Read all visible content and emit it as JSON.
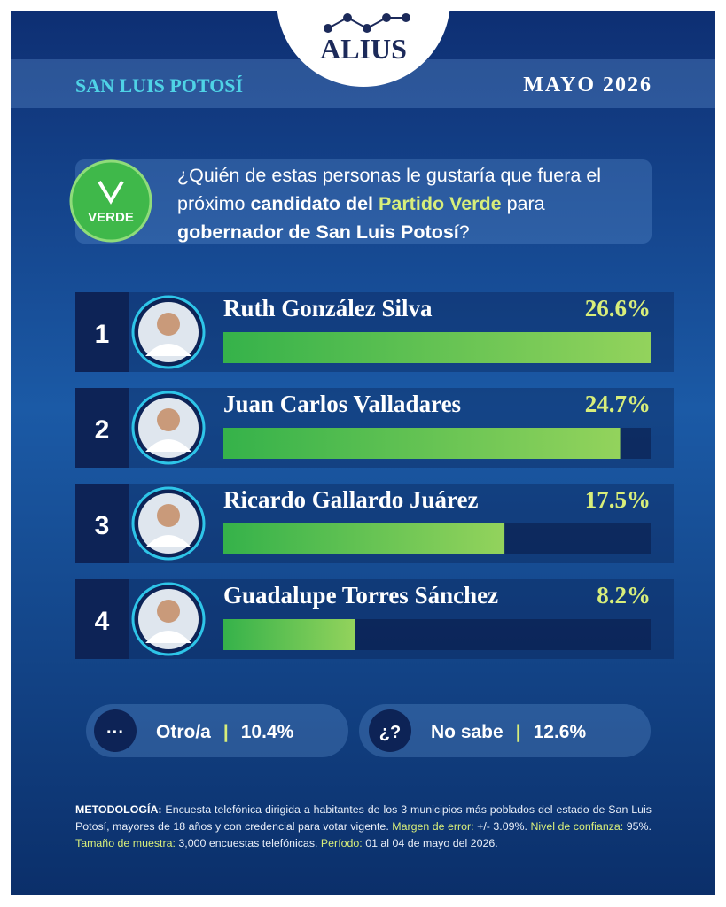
{
  "brand": "ALIUS",
  "region": "SAN LUIS POTOSÍ",
  "date": "MAYO 2026",
  "party_logo": "VERDE",
  "question_parts": [
    "¿Quién de estas personas le gustaría que fuera el próximo ",
    "candidato del ",
    "Partido Verde",
    " para ",
    "gobernador de San Luis Potosí",
    "?"
  ],
  "chart_data": {
    "type": "bar",
    "ranks": [
      1,
      2,
      3,
      4
    ],
    "categories": [
      "Ruth González Silva",
      "Juan Carlos Valladares",
      "Ricardo Gallardo Juárez",
      "Guadalupe Torres Sánchez"
    ],
    "values": [
      26.6,
      24.7,
      17.5,
      8.2
    ],
    "value_labels": [
      "26.6%",
      "24.7%",
      "17.5%",
      "8.2%"
    ],
    "xlim": [
      0,
      26.6
    ],
    "color": "#4cbb4c"
  },
  "summary": [
    {
      "icon": "···",
      "label": "Otro/a",
      "value": "10.4%"
    },
    {
      "icon": "¿?",
      "label": "No sabe",
      "value": "12.6%"
    }
  ],
  "methodology": [
    {
      "label": "METODOLOGÍA:",
      "text": " Encuesta telefónica dirigida a habitantes de los 3 municipios más poblados del estado de San Luis Potosí, mayores de 18 años y con credencial para votar vigente. "
    },
    {
      "label": "Margen de error:",
      "text": " +/- 3.09%. "
    },
    {
      "label": "Nivel de confianza:",
      "text": " 95%. "
    },
    {
      "label": "Tamaño de muestra:",
      "text": " 3,000 encuestas telefónicas. "
    },
    {
      "label": "Período:",
      "text": " 01 al 04 de mayo del 2026."
    }
  ]
}
